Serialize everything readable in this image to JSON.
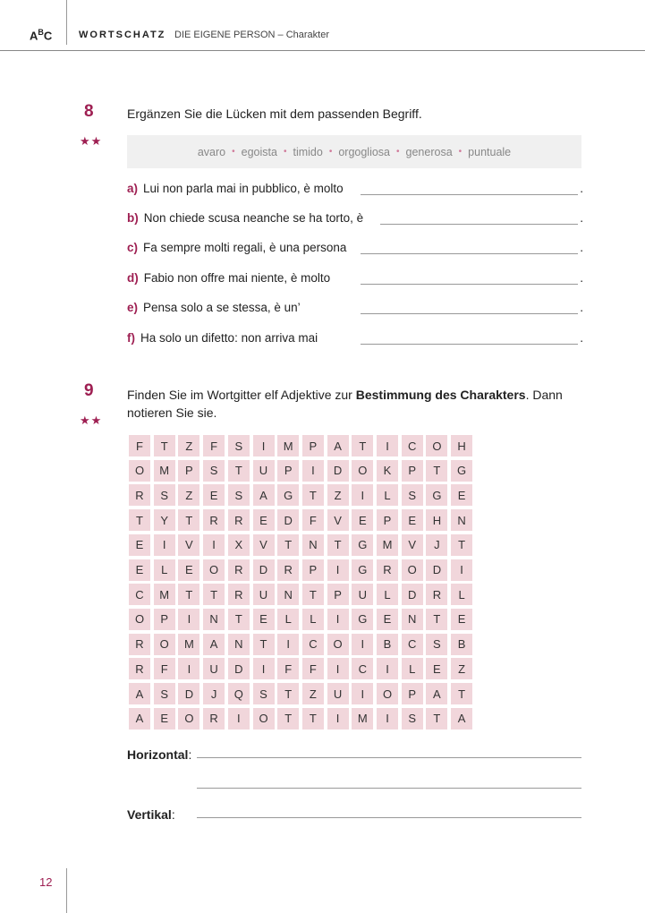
{
  "header": {
    "logo": "ABC",
    "section": "WORTSCHATZ",
    "topic": "DIE EIGENE PERSON – Charakter"
  },
  "exercise8": {
    "number": "8",
    "difficulty": "★★",
    "instruction": "Ergänzen Sie die Lücken mit dem passenden Begriff.",
    "word_bank": [
      "avaro",
      "egoista",
      "timido",
      "orgogliosa",
      "generosa",
      "puntuale"
    ],
    "items": [
      {
        "label": "a)",
        "text": "Lui non parla mai in pubblico, è molto"
      },
      {
        "label": "b)",
        "text": "Non chiede scusa neanche se ha torto, è"
      },
      {
        "label": "c)",
        "text": "Fa sempre molti regali, è una persona"
      },
      {
        "label": "d)",
        "text": "Fabio non offre mai niente, è molto"
      },
      {
        "label": "e)",
        "text": "Pensa solo a se stessa, è un’"
      },
      {
        "label": "f)",
        "text": "Ha solo un difetto: non arriva mai"
      }
    ]
  },
  "exercise9": {
    "number": "9",
    "difficulty": "★★",
    "instruction_pre": "Finden Sie im Wortgitter elf Adjektive zur ",
    "instruction_bold": "Bestimmung des Charakters",
    "instruction_post": ". Dann notieren Sie sie.",
    "grid": [
      "FTZFSIMPATICOH",
      "OMPSTUPIDOKPTG",
      "RSZESAGTZILSGE",
      "TYTRREDFVEPEHN",
      "EIVIXVTNTGMVJT",
      "ELEORDRPIGRODI",
      "CMTTRUNTPULDRL",
      "OPINTELLIGENTE",
      "ROMANTICOIBCSB",
      "RFIUDIFFICILEZ",
      "ASDJQSTZUIOPAT",
      "AEORIOTTIMISTA"
    ],
    "horizontal_label": "Horizontal",
    "vertical_label": "Vertikal"
  },
  "footer": {
    "page_number": "12"
  },
  "colors": {
    "accent": "#9e1f52",
    "grid_cell": "#f1d6db",
    "word_bank_bg": "#f0f0f0"
  }
}
